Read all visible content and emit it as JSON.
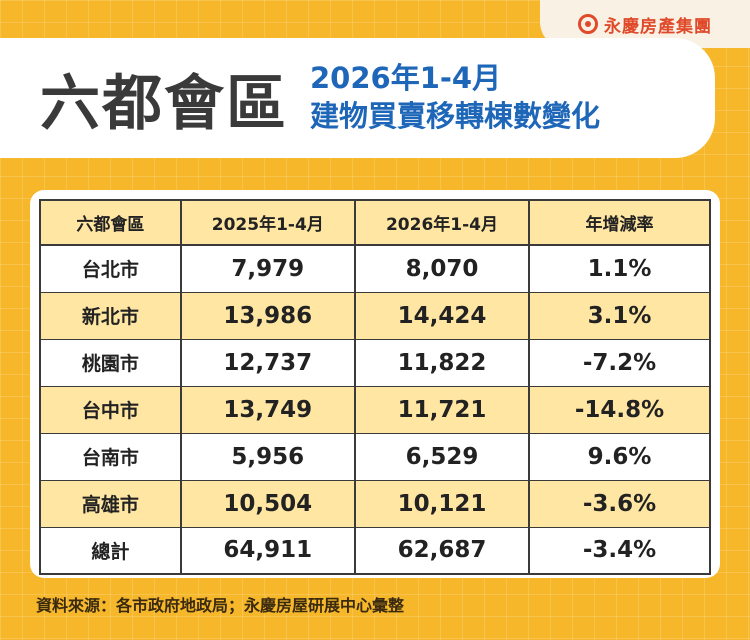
{
  "brand": {
    "name": "永慶房產集團"
  },
  "header": {
    "title": "六都會區",
    "subtitle_line1": "2026年1-4月",
    "subtitle_line2": "建物買賣移轉棟數變化"
  },
  "table": {
    "headers": [
      "六都會區",
      "2025年1-4月",
      "2026年1-4月",
      "年增減率"
    ],
    "rows": [
      [
        "台北市",
        "7,979",
        "8,070",
        "1.1%"
      ],
      [
        "新北市",
        "13,986",
        "14,424",
        "3.1%"
      ],
      [
        "桃園市",
        "12,737",
        "11,822",
        "-7.2%"
      ],
      [
        "台中市",
        "13,749",
        "11,721",
        "-14.8%"
      ],
      [
        "台南市",
        "5,956",
        "6,529",
        "9.6%"
      ],
      [
        "高雄市",
        "10,504",
        "10,121",
        "-3.6%"
      ],
      [
        "總計",
        "64,911",
        "62,687",
        "-3.4%"
      ]
    ]
  },
  "footer": {
    "source": "資料來源：各市政府地政局；永慶房屋研展中心彙整"
  },
  "colors": {
    "background": "#f6b82a",
    "title_blue": "#1e66b8",
    "brand_red": "#e04a2a",
    "row_highlight": "#ffe6a3"
  }
}
